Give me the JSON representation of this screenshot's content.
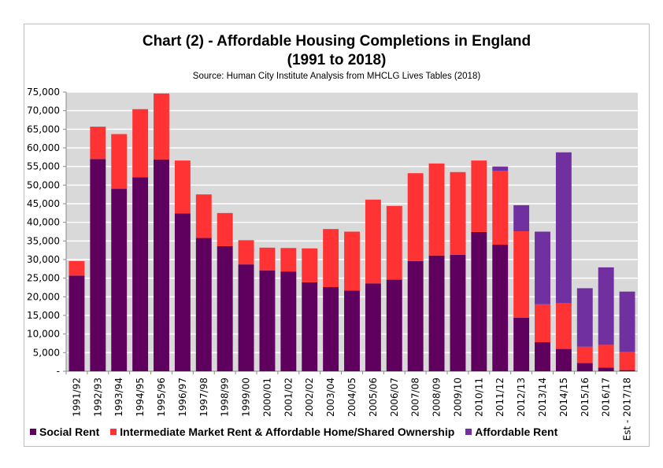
{
  "chart_data": {
    "type": "bar",
    "stacked": true,
    "title": "Chart (2) - Affordable Housing Completions in England",
    "title_line2": "(1991 to 2018)",
    "subtitle": "Source: Human City Institute Analysis from MHCLG Lives Tables (2018)",
    "ylim": [
      0,
      75000
    ],
    "yticks": [
      "-",
      "5,000",
      "10,000",
      "15,000",
      "20,000",
      "25,000",
      "30,000",
      "35,000",
      "40,000",
      "45,000",
      "50,000",
      "55,000",
      "60,000",
      "65,000",
      "70,000",
      "75,000"
    ],
    "grid": true,
    "legend_position": "bottom",
    "background": "#d9d9d9",
    "categories": [
      "1991/92",
      "1992/93",
      "1993/94",
      "1994/95",
      "1995/96",
      "1996/97",
      "1997/98",
      "1998/99",
      "1999/00",
      "2000/01",
      "2001/02",
      "2002/02",
      "2003/04",
      "2004/05",
      "2005/06",
      "2006/07",
      "2007/08",
      "2008/09",
      "2009/10",
      "2010/11",
      "2011/12",
      "2012/13",
      "2013/14",
      "2014/15",
      "2015/16",
      "2016/17",
      "Est - 2017/18"
    ],
    "series": [
      {
        "name": "Social Rent",
        "color": "#5f005f",
        "values": [
          25700,
          57000,
          49000,
          52100,
          56900,
          42400,
          35800,
          33600,
          28700,
          27100,
          26800,
          23900,
          22600,
          21700,
          23600,
          24600,
          29600,
          31100,
          31300,
          37400,
          34000,
          14400,
          7800,
          6000,
          2200,
          1000,
          300
        ]
      },
      {
        "name": "Intermediate Market Rent & Affordable Home/Shared Ownership",
        "color": "#ff3333",
        "values": [
          3900,
          8700,
          14700,
          18300,
          17700,
          14200,
          11700,
          8900,
          6500,
          6100,
          6300,
          9100,
          15600,
          15800,
          22500,
          19800,
          23600,
          24700,
          22200,
          19200,
          19800,
          23200,
          10200,
          12300,
          4400,
          6100,
          4900
        ]
      },
      {
        "name": "Affordable Rent",
        "color": "#7030a0",
        "values": [
          0,
          0,
          0,
          0,
          0,
          0,
          0,
          0,
          0,
          0,
          0,
          0,
          0,
          0,
          0,
          0,
          0,
          0,
          0,
          0,
          1200,
          7000,
          19500,
          40500,
          15700,
          20800,
          16200
        ]
      }
    ]
  }
}
